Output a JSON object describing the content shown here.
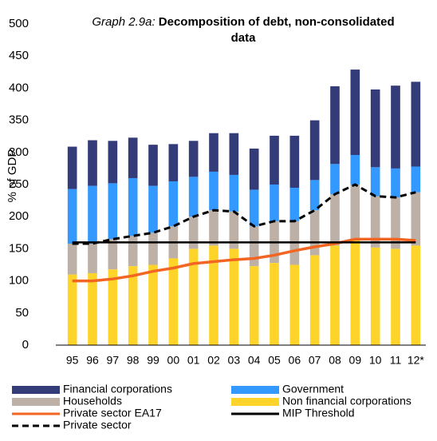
{
  "chart_data": {
    "type": "bar",
    "title_prefix": "Graph 2.9a:",
    "title": "Decomposition of debt, non-consolidated data",
    "ylabel": "% of GDP",
    "categories": [
      "95",
      "96",
      "97",
      "98",
      "99",
      "00",
      "01",
      "02",
      "03",
      "04",
      "05",
      "06",
      "07",
      "08",
      "09",
      "10",
      "11",
      "12*"
    ],
    "ylim": [
      0,
      500
    ],
    "yticks": [
      0,
      50,
      100,
      150,
      200,
      250,
      300,
      350,
      400,
      450,
      500
    ],
    "stacked": true,
    "series": [
      {
        "name": "Financial corporations",
        "type": "bar",
        "color": "#333c78",
        "values": [
          66,
          71,
          66,
          63,
          64,
          58,
          56,
          60,
          65,
          64,
          76,
          81,
          93,
          121,
          133,
          121,
          129,
          132
        ]
      },
      {
        "name": "Government",
        "type": "bar",
        "color": "#3399ff",
        "values": [
          85,
          90,
          87,
          90,
          73,
          70,
          62,
          60,
          57,
          57,
          57,
          52,
          47,
          47,
          46,
          45,
          45,
          40
        ]
      },
      {
        "name": "Households",
        "type": "bar",
        "color": "#bdb1a7",
        "values": [
          48,
          46,
          47,
          47,
          50,
          50,
          50,
          55,
          58,
          62,
          65,
          68,
          70,
          80,
          85,
          80,
          80,
          83
        ]
      },
      {
        "name": "Non financial corporations",
        "type": "bar",
        "color": "#ffd42a",
        "values": [
          110,
          112,
          118,
          123,
          125,
          135,
          150,
          155,
          150,
          123,
          128,
          125,
          140,
          155,
          165,
          152,
          150,
          155
        ]
      },
      {
        "name": "Private sector EA17",
        "type": "line",
        "color": "#f26522",
        "values": [
          100,
          100,
          103,
          108,
          115,
          120,
          127,
          130,
          133,
          135,
          140,
          147,
          153,
          158,
          165,
          165,
          165,
          163
        ]
      },
      {
        "name": "MIP Threshold",
        "type": "line",
        "color": "#000000",
        "values": [
          160,
          160,
          160,
          160,
          160,
          160,
          160,
          160,
          160,
          160,
          160,
          160,
          160,
          160,
          160,
          160,
          160,
          160
        ]
      },
      {
        "name": "Private sector",
        "type": "line",
        "color": "#000000",
        "dashed": true,
        "values": [
          158,
          158,
          165,
          170,
          175,
          185,
          200,
          210,
          208,
          185,
          193,
          193,
          210,
          235,
          250,
          232,
          230,
          238
        ]
      }
    ]
  }
}
